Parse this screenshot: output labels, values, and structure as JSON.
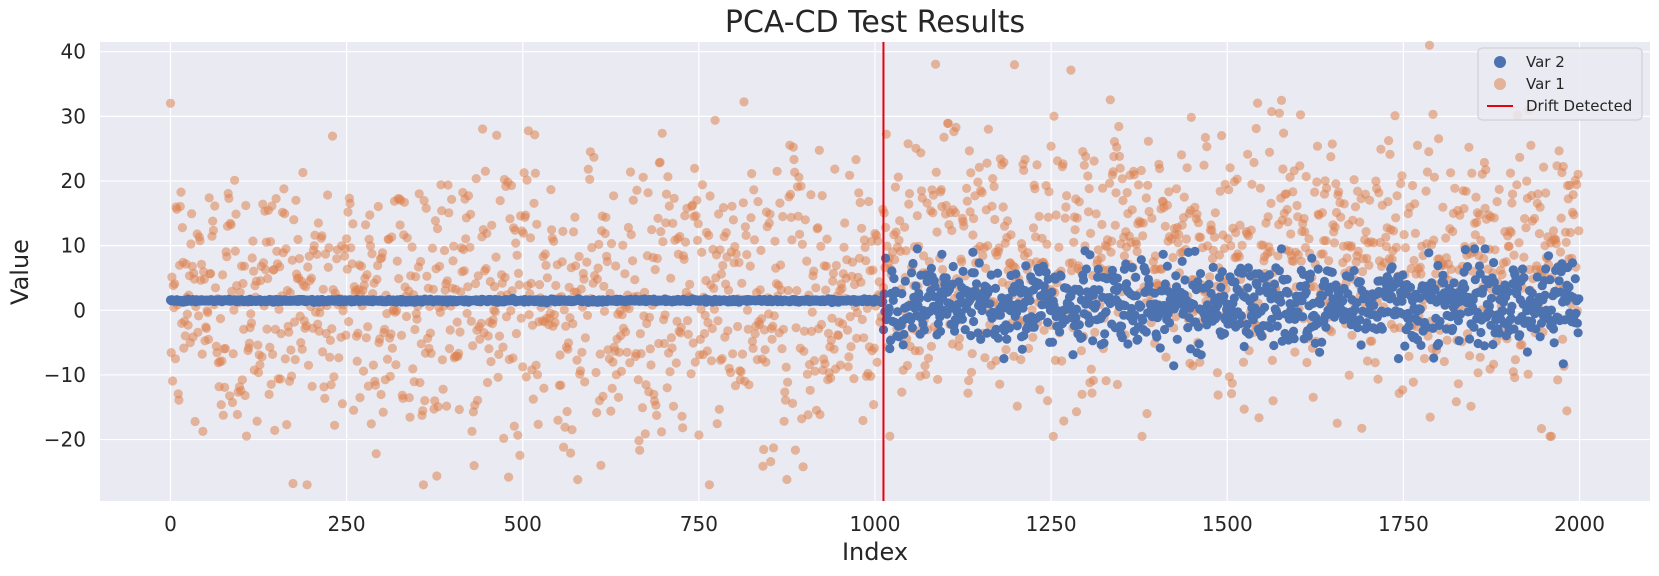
{
  "chart_data": {
    "type": "scatter",
    "title": "PCA-CD Test Results",
    "xlabel": "Index",
    "ylabel": "Value",
    "xlim": [
      -100,
      2100
    ],
    "ylim": [
      -29.5,
      41.5
    ],
    "xticks": [
      0,
      250,
      500,
      750,
      1000,
      1250,
      1500,
      1750,
      2000
    ],
    "yticks": [
      -20,
      -10,
      0,
      10,
      20,
      30,
      40
    ],
    "xtick_labels": [
      "0",
      "250",
      "500",
      "750",
      "1000",
      "1250",
      "1500",
      "1750",
      "2000"
    ],
    "ytick_labels": [
      "−20",
      "−10",
      "0",
      "10",
      "20",
      "30",
      "40"
    ],
    "grid": true,
    "legend_position": "top-right",
    "drift_index": 1012,
    "n_points": 2000,
    "series": [
      {
        "name": "Var 2",
        "color": "#4c72b0",
        "pre_drift": {
          "mean": 1.5,
          "spread": 0.35
        },
        "post_drift": {
          "mean": 1.0,
          "spread": 3.2,
          "min": -9,
          "max": 9.5
        }
      },
      {
        "name": "Var 1",
        "color": "#dd8452",
        "opacity": 0.55,
        "pre_drift": {
          "mean": 1.5,
          "spread": 11,
          "min": -27,
          "max": 40.5
        },
        "post_drift": {
          "mean": 8,
          "spread": 10,
          "min": -19.5,
          "max": 41
        }
      }
    ],
    "vlines": [
      {
        "name": "Drift Detected",
        "x": 1012,
        "color": "#e8000b"
      }
    ]
  },
  "legend": {
    "items": [
      {
        "label": "Var 2",
        "marker": "circle",
        "color": "#4c72b0"
      },
      {
        "label": "Var 1",
        "marker": "circle",
        "color": "#dd8452"
      },
      {
        "label": "Drift Detected",
        "marker": "line",
        "color": "#e8000b"
      }
    ]
  },
  "style": {
    "plot_background": "#eaeaf2",
    "grid_color": "#ffffff",
    "text_color": "#262626"
  }
}
